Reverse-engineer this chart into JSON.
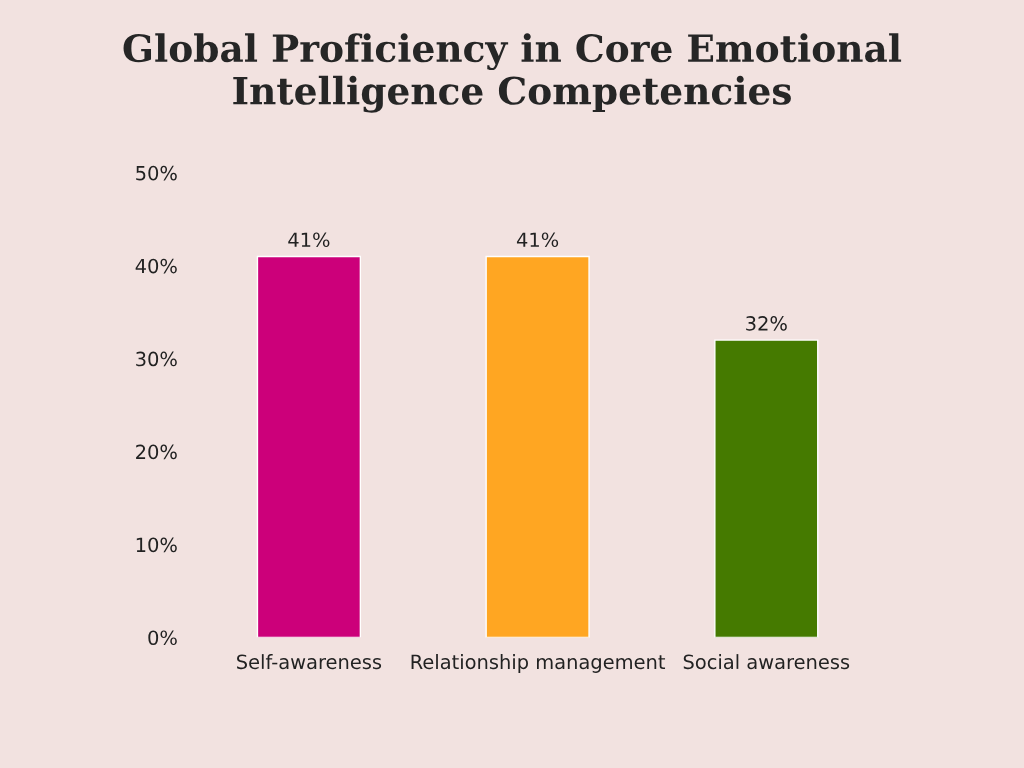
{
  "chart_data": {
    "type": "bar",
    "title": "Global Proficiency in Core Emotional Intelligence Competencies",
    "categories": [
      "Self-awareness",
      "Relationship management",
      "Social awareness"
    ],
    "values": [
      41,
      41,
      32
    ],
    "colors": [
      "#cc007a",
      "#ffa622",
      "#457a00"
    ],
    "value_labels": [
      "41%",
      "41%",
      "32%"
    ],
    "ylim": [
      0,
      50
    ],
    "yticks": [
      {
        "value": 0,
        "label": "0%"
      },
      {
        "value": 10,
        "label": "10%"
      },
      {
        "value": 20,
        "label": "20%"
      },
      {
        "value": 30,
        "label": "30%"
      },
      {
        "value": 40,
        "label": "40%"
      },
      {
        "value": 50,
        "label": "50%"
      }
    ],
    "grid": false
  }
}
